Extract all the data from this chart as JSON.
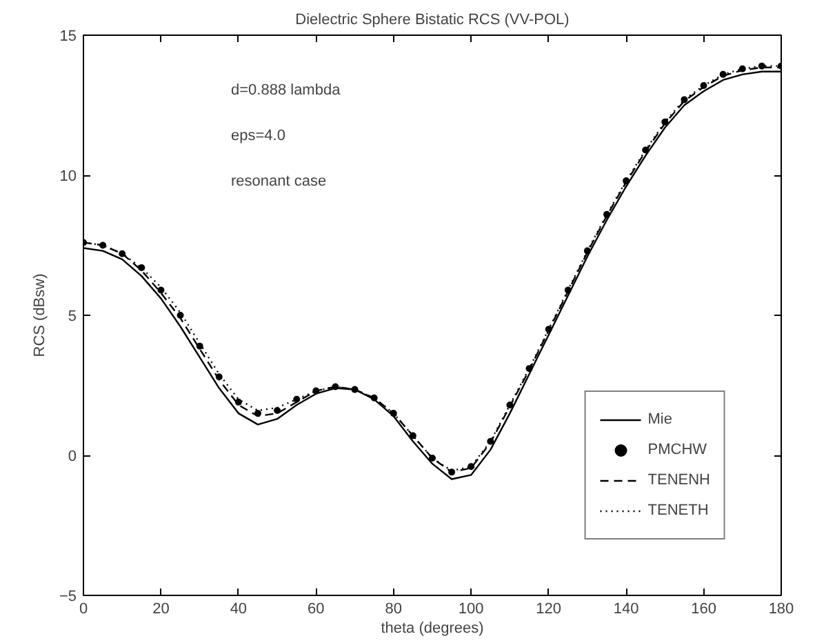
{
  "chart_data": {
    "type": "line",
    "title": "Dielectric Sphere Bistatic RCS (VV-POL)",
    "xlabel": "theta (degrees)",
    "ylabel": "RCS (dBsw)",
    "x": [
      0,
      5,
      10,
      15,
      20,
      25,
      30,
      35,
      40,
      45,
      50,
      55,
      60,
      65,
      70,
      75,
      80,
      85,
      90,
      95,
      100,
      105,
      110,
      115,
      120,
      125,
      130,
      135,
      140,
      145,
      150,
      155,
      160,
      165,
      170,
      175,
      180
    ],
    "series": [
      {
        "name": "Mie",
        "color": "#000000",
        "line_style": "solid",
        "values": [
          7.4,
          7.3,
          7.0,
          6.4,
          5.6,
          4.6,
          3.5,
          2.4,
          1.5,
          1.1,
          1.3,
          1.8,
          2.2,
          2.4,
          2.35,
          2.0,
          1.4,
          0.5,
          -0.3,
          -0.85,
          -0.7,
          0.2,
          1.5,
          2.9,
          4.3,
          5.7,
          7.1,
          8.4,
          9.6,
          10.7,
          11.7,
          12.5,
          13.0,
          13.4,
          13.6,
          13.7,
          13.7
        ]
      },
      {
        "name": "PMCHW",
        "color": "#000000",
        "type": "scatter",
        "marker": "circle",
        "values": [
          7.6,
          7.5,
          7.2,
          6.7,
          5.9,
          5.0,
          3.9,
          2.8,
          1.9,
          1.5,
          1.6,
          2.0,
          2.3,
          2.45,
          2.35,
          2.05,
          1.5,
          0.7,
          -0.1,
          -0.6,
          -0.4,
          0.5,
          1.8,
          3.1,
          4.5,
          5.9,
          7.3,
          8.6,
          9.8,
          10.9,
          11.9,
          12.7,
          13.2,
          13.6,
          13.8,
          13.9,
          13.9
        ]
      },
      {
        "name": "TENENH",
        "color": "#000000",
        "line_style": "dashed",
        "values": [
          7.6,
          7.5,
          7.2,
          6.6,
          5.8,
          4.9,
          3.8,
          2.7,
          1.8,
          1.4,
          1.5,
          1.9,
          2.3,
          2.45,
          2.35,
          2.05,
          1.5,
          0.7,
          -0.1,
          -0.6,
          -0.45,
          0.45,
          1.75,
          3.05,
          4.45,
          5.85,
          7.25,
          8.55,
          9.75,
          10.85,
          11.85,
          12.65,
          13.15,
          13.55,
          13.75,
          13.85,
          13.85
        ]
      },
      {
        "name": "TENETH",
        "color": "#000000",
        "line_style": "dotted",
        "values": [
          7.6,
          7.5,
          7.2,
          6.7,
          6.0,
          5.1,
          4.0,
          2.9,
          2.0,
          1.6,
          1.7,
          2.0,
          2.3,
          2.45,
          2.35,
          2.05,
          1.5,
          0.7,
          -0.1,
          -0.55,
          -0.4,
          0.5,
          1.8,
          3.1,
          4.5,
          5.9,
          7.3,
          8.6,
          9.8,
          10.9,
          11.9,
          12.7,
          13.2,
          13.6,
          13.8,
          13.9,
          13.9
        ]
      }
    ],
    "annotations": [
      "d=0.888 lambda",
      "eps=4.0",
      "resonant case"
    ],
    "xlim": [
      0,
      180
    ],
    "xticks": [
      0,
      20,
      40,
      60,
      80,
      100,
      120,
      140,
      160,
      180
    ],
    "ylim": [
      -5,
      15
    ],
    "yticks": [
      -5,
      0,
      5,
      10,
      15
    ],
    "grid": false,
    "legend": "bottom right"
  }
}
